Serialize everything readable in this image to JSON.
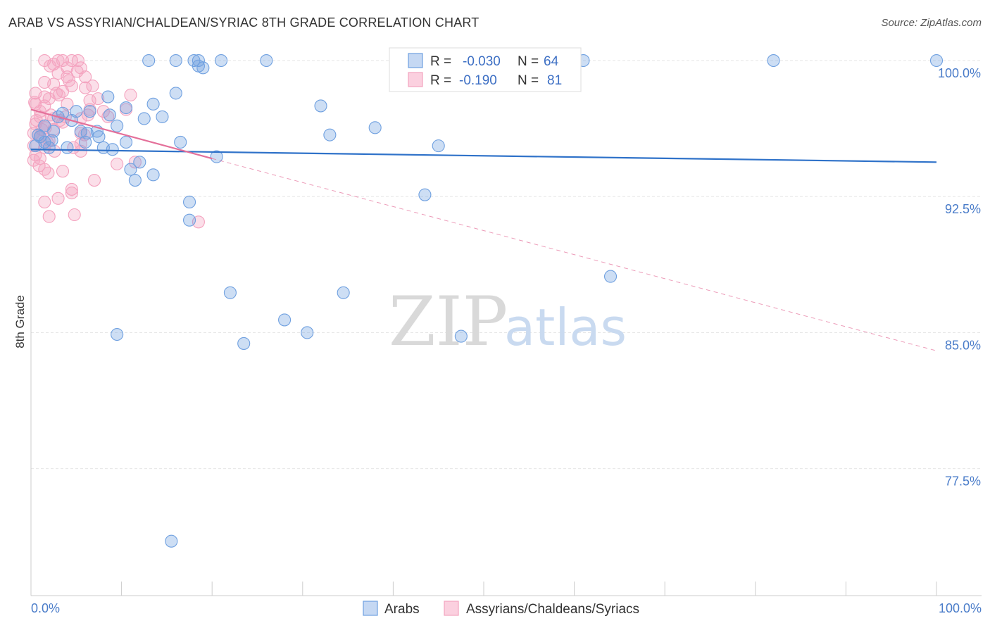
{
  "header": {
    "title": "ARAB VS ASSYRIAN/CHALDEAN/SYRIAC 8TH GRADE CORRELATION CHART",
    "source": "Source: ZipAtlas.com"
  },
  "watermark": {
    "zip": "ZIP",
    "atlas": "atlas"
  },
  "legend_top": {
    "rows": [
      {
        "r_label": "R =",
        "r_value": "-0.030",
        "n_label": "N =",
        "n_value": "64"
      },
      {
        "r_label": "R =",
        "r_value": "-0.190",
        "n_label": "N =",
        "n_value": "81"
      }
    ]
  },
  "colors": {
    "arabs": "#6fa0e0",
    "arabs_line": "#2f72c9",
    "assyrians": "#f4a3bf",
    "assyrians_line": "#e4709a",
    "grid": "#e6e6e6"
  },
  "chart_data": {
    "type": "scatter",
    "title": "ARAB VS ASSYRIAN/CHALDEAN/SYRIAC 8TH GRADE CORRELATION CHART",
    "xlabel": "",
    "ylabel": "8th Grade",
    "xlim": [
      0,
      100
    ],
    "ylim": [
      70.5,
      100.7
    ],
    "x_tick_labels": [
      "0.0%",
      "100.0%"
    ],
    "y_ticks": [
      77.5,
      85.0,
      92.5,
      100.0
    ],
    "y_tick_labels": [
      "77.5%",
      "85.0%",
      "92.5%",
      "100.0%"
    ],
    "grid": true,
    "legend_position": "bottom",
    "series": [
      {
        "name": "Arabs",
        "r": -0.03,
        "n": 64,
        "trend": {
          "x": [
            0,
            100
          ],
          "y": [
            95.1,
            94.4
          ]
        },
        "points": [
          [
            13,
            100.0
          ],
          [
            16,
            100.0
          ],
          [
            18,
            100.0
          ],
          [
            18.5,
            100.0
          ],
          [
            21,
            100.0
          ],
          [
            26,
            100.0
          ],
          [
            18.5,
            99.7
          ],
          [
            19,
            99.6
          ],
          [
            51,
            100.0
          ],
          [
            61,
            100.0
          ],
          [
            82,
            100.0
          ],
          [
            100,
            100.0
          ],
          [
            16,
            98.2
          ],
          [
            8.5,
            98.0
          ],
          [
            13.5,
            97.6
          ],
          [
            10.5,
            97.4
          ],
          [
            32,
            97.5
          ],
          [
            6.5,
            97.2
          ],
          [
            3.5,
            97.1
          ],
          [
            4.5,
            96.7
          ],
          [
            12.5,
            96.8
          ],
          [
            14.5,
            96.9
          ],
          [
            9.5,
            96.4
          ],
          [
            38,
            96.3
          ],
          [
            1.5,
            96.4
          ],
          [
            2.5,
            96.1
          ],
          [
            5.5,
            96.1
          ],
          [
            7.5,
            95.8
          ],
          [
            1,
            95.8
          ],
          [
            1.5,
            95.5
          ],
          [
            0.5,
            95.3
          ],
          [
            2,
            95.2
          ],
          [
            4,
            95.2
          ],
          [
            6,
            95.5
          ],
          [
            8,
            95.2
          ],
          [
            9,
            95.1
          ],
          [
            10.5,
            95.5
          ],
          [
            16.5,
            95.5
          ],
          [
            33,
            95.9
          ],
          [
            45,
            95.3
          ],
          [
            20.5,
            94.7
          ],
          [
            12,
            94.4
          ],
          [
            11,
            94.0
          ],
          [
            13.5,
            93.7
          ],
          [
            11.5,
            93.4
          ],
          [
            43.5,
            92.6
          ],
          [
            17.5,
            92.2
          ],
          [
            17.5,
            91.2
          ],
          [
            64,
            88.1
          ],
          [
            22,
            87.2
          ],
          [
            34.5,
            87.2
          ],
          [
            28,
            85.7
          ],
          [
            30.5,
            85.0
          ],
          [
            9.5,
            84.9
          ],
          [
            47.5,
            84.8
          ],
          [
            23.5,
            84.4
          ],
          [
            15.5,
            73.5
          ],
          [
            3,
            96.9
          ],
          [
            5,
            97.2
          ],
          [
            7.3,
            96.1
          ],
          [
            0.8,
            95.9
          ],
          [
            2.3,
            95.6
          ],
          [
            6.2,
            96.0
          ],
          [
            8.7,
            97.0
          ]
        ]
      },
      {
        "name": "Assyrians/Chaldeans/Syriacs",
        "r": -0.19,
        "n": 81,
        "trend": {
          "x": [
            0,
            20
          ],
          "y": [
            97.3,
            94.6
          ]
        },
        "trend_extension": {
          "x": [
            20,
            100
          ],
          "y": [
            94.6,
            84.0
          ]
        },
        "points": [
          [
            1.5,
            100.0
          ],
          [
            3,
            100.0
          ],
          [
            3.5,
            100.0
          ],
          [
            4.5,
            100.0
          ],
          [
            2.5,
            99.8
          ],
          [
            4,
            99.6
          ],
          [
            5.5,
            99.6
          ],
          [
            3,
            99.3
          ],
          [
            4,
            99.1
          ],
          [
            6,
            99.1
          ],
          [
            1.5,
            98.8
          ],
          [
            2.5,
            98.7
          ],
          [
            4.5,
            98.6
          ],
          [
            6,
            98.5
          ],
          [
            3.5,
            98.3
          ],
          [
            0.5,
            98.2
          ],
          [
            1.5,
            98.0
          ],
          [
            2,
            97.9
          ],
          [
            0.5,
            97.6
          ],
          [
            1.5,
            97.5
          ],
          [
            4,
            97.6
          ],
          [
            6.5,
            97.8
          ],
          [
            11,
            98.1
          ],
          [
            10.5,
            97.3
          ],
          [
            6.5,
            97.3
          ],
          [
            8,
            97.2
          ],
          [
            1,
            96.9
          ],
          [
            2.5,
            96.8
          ],
          [
            3.5,
            96.6
          ],
          [
            5.5,
            96.8
          ],
          [
            8.5,
            96.9
          ],
          [
            0.5,
            96.5
          ],
          [
            1.5,
            96.4
          ],
          [
            2.5,
            96.2
          ],
          [
            0.3,
            96.0
          ],
          [
            1,
            95.8
          ],
          [
            2,
            95.6
          ],
          [
            5.5,
            96.0
          ],
          [
            5.5,
            95.4
          ],
          [
            0.3,
            95.3
          ],
          [
            1.5,
            95.2
          ],
          [
            5.5,
            95.0
          ],
          [
            0.5,
            94.8
          ],
          [
            1,
            94.6
          ],
          [
            0.3,
            94.5
          ],
          [
            9.5,
            94.3
          ],
          [
            11.5,
            94.4
          ],
          [
            1.5,
            94.0
          ],
          [
            3.5,
            93.9
          ],
          [
            7,
            93.4
          ],
          [
            4.5,
            92.9
          ],
          [
            3,
            92.4
          ],
          [
            1.5,
            92.2
          ],
          [
            4.5,
            92.7
          ],
          [
            4.8,
            91.5
          ],
          [
            2,
            91.4
          ],
          [
            18.5,
            91.1
          ],
          [
            1,
            97.2
          ],
          [
            2.2,
            97.0
          ],
          [
            3.2,
            96.7
          ],
          [
            0.8,
            95.9
          ],
          [
            1.8,
            95.5
          ],
          [
            2.8,
            98.2
          ],
          [
            4.2,
            98.9
          ],
          [
            5.1,
            99.4
          ],
          [
            6.8,
            98.6
          ],
          [
            0.6,
            96.7
          ],
          [
            1.2,
            96.2
          ],
          [
            2.6,
            95.0
          ],
          [
            3.8,
            96.9
          ],
          [
            5.9,
            95.9
          ],
          [
            7.4,
            97.9
          ],
          [
            0.9,
            94.2
          ],
          [
            1.9,
            93.8
          ],
          [
            4.7,
            95.2
          ],
          [
            3.1,
            98.1
          ],
          [
            2.1,
            99.7
          ],
          [
            5.2,
            100.0
          ],
          [
            6.3,
            97.0
          ],
          [
            0.4,
            97.7
          ],
          [
            1.6,
            96.3
          ]
        ]
      }
    ]
  },
  "legend_bottom": {
    "items": [
      {
        "label": "Arabs"
      },
      {
        "label": "Assyrians/Chaldeans/Syriacs"
      }
    ]
  }
}
